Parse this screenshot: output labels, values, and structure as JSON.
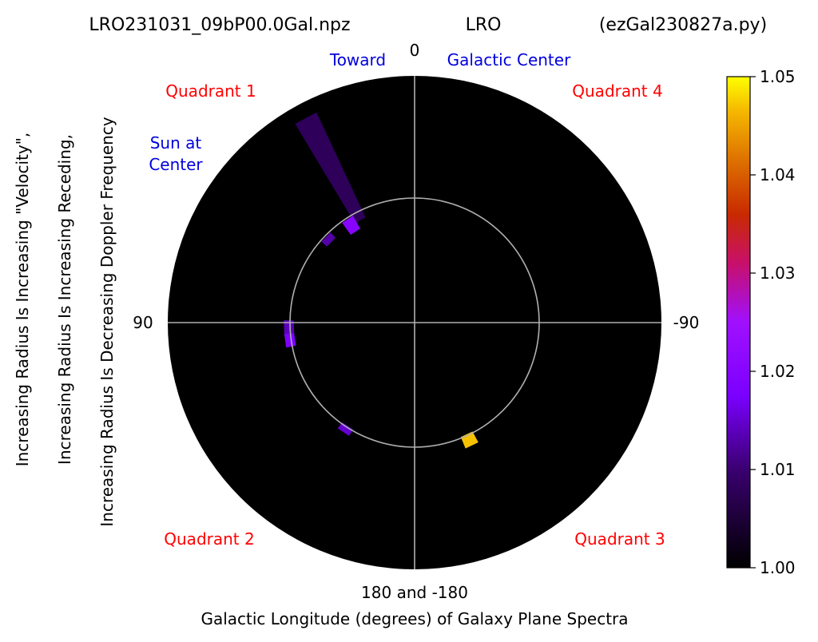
{
  "title": {
    "left": "LRO231031_09bP00.0Gal.npz",
    "center": "LRO",
    "right": "(ezGal230827a.py)"
  },
  "ylabels": [
    "Increasing Radius Is Increasing \"Velocity\",",
    "Increasing Radius Is Increasing Receding,",
    "Increasing Radius Is Decreasing Doppler Frequency"
  ],
  "xlabel": "Galactic Longitude (degrees) of Galaxy Plane Spectra",
  "colors": {
    "quadrant_text": "#ff0000",
    "annotation_text": "#0000dd",
    "disk": "#000000",
    "grid": "#b0b0b0"
  },
  "chart_data": {
    "type": "heatmap",
    "projection": "polar",
    "angle_ticks": [
      {
        "angle": 0,
        "label": "0"
      },
      {
        "angle": 90,
        "label": "90"
      },
      {
        "angle": -90,
        "label": "-90"
      },
      {
        "angle": 180,
        "label": "180 and -180"
      }
    ],
    "angle_direction": "counterclockwise from top",
    "quadrant_labels": [
      {
        "position": "top-left",
        "text": "Quadrant 1"
      },
      {
        "position": "top-right",
        "text": "Quadrant 4"
      },
      {
        "position": "bottom-left",
        "text": "Quadrant 2"
      },
      {
        "position": "bottom-right",
        "text": "Quadrant 3"
      }
    ],
    "annotations": {
      "toward": "Toward",
      "galactic_center": "Galactic Center",
      "sun_line1": "Sun at",
      "sun_line2": "Center"
    },
    "colorbar": {
      "colormap": "gnuplot",
      "range": [
        1.0,
        1.05
      ],
      "ticks": [
        "1.00",
        "1.01",
        "1.02",
        "1.03",
        "1.04",
        "1.05"
      ]
    },
    "emission_features": [
      {
        "longitude_deg": 28,
        "radius_range": [
          0.47,
          0.94
        ],
        "value": 1.008
      },
      {
        "longitude_deg": 33,
        "radius_range": [
          0.44,
          0.5
        ],
        "value": 1.02
      },
      {
        "longitude_deg": 46,
        "radius_range": [
          0.47,
          0.5
        ],
        "value": 1.013
      },
      {
        "longitude_deg": 92,
        "radius_range": [
          0.49,
          0.53
        ],
        "value": 1.014
      },
      {
        "longitude_deg": 98,
        "radius_range": [
          0.49,
          0.53
        ],
        "value": 1.018
      },
      {
        "longitude_deg": 147,
        "radius_range": [
          0.5,
          0.53
        ],
        "value": 1.015
      },
      {
        "longitude_deg": -155,
        "radius_range": [
          0.5,
          0.55
        ],
        "value": 1.047
      }
    ]
  }
}
